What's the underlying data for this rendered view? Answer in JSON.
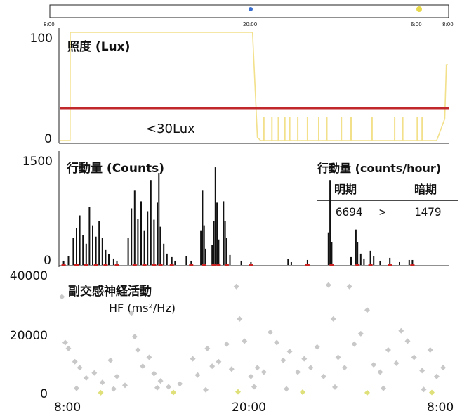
{
  "colors": {
    "light": "#f2e08a",
    "threshold": "#c0282c",
    "threshold_label": "#2e2a7a",
    "activity": "#111111",
    "dark_mark": "#cc2222",
    "hf": "#c8c8c8",
    "hf_low": "#dfe07a"
  },
  "chart_data": [
    {
      "type": "line",
      "panel": "light",
      "title": "照度 (Lux)",
      "y_tick_labels": [
        "100",
        "0"
      ],
      "ylim": [
        0,
        100
      ],
      "xlim": [
        0,
        24
      ],
      "threshold": {
        "value": 30,
        "label": "<30Lux"
      },
      "series": [
        {
          "x": [
            0,
            0.3,
            0.6,
            0.61,
            11.9,
            11.9,
            12.2,
            12.4,
            23.3,
            23.5,
            23.8,
            23.9,
            24
          ],
          "y": [
            0,
            0,
            0,
            100,
            100,
            100,
            3,
            0,
            0,
            8,
            20,
            70,
            70
          ]
        }
      ],
      "spikes_x": [
        12.6,
        13.1,
        13.5,
        13.9,
        14.2,
        14.7,
        15.3,
        16.0,
        16.5,
        17.4,
        18.0,
        19.3,
        20.7,
        21.2,
        22.1,
        22.4
      ]
    },
    {
      "type": "bar",
      "panel": "activity",
      "title": "行動量 (Counts)",
      "y_tick_labels": [
        "1500",
        "0"
      ],
      "ylim": [
        0,
        1500
      ],
      "xlim": [
        0,
        24
      ],
      "values": [
        {
          "x": 0.2,
          "y": 60
        },
        {
          "x": 0.5,
          "y": 120
        },
        {
          "x": 0.8,
          "y": 380
        },
        {
          "x": 1.0,
          "y": 520
        },
        {
          "x": 1.2,
          "y": 700
        },
        {
          "x": 1.4,
          "y": 420
        },
        {
          "x": 1.6,
          "y": 300
        },
        {
          "x": 1.8,
          "y": 820
        },
        {
          "x": 2.0,
          "y": 560
        },
        {
          "x": 2.2,
          "y": 400
        },
        {
          "x": 2.4,
          "y": 620
        },
        {
          "x": 2.6,
          "y": 380
        },
        {
          "x": 2.8,
          "y": 210
        },
        {
          "x": 3.0,
          "y": 150
        },
        {
          "x": 3.3,
          "y": 90
        },
        {
          "x": 3.5,
          "y": 60
        },
        {
          "x": 4.2,
          "y": 380
        },
        {
          "x": 4.4,
          "y": 800
        },
        {
          "x": 4.6,
          "y": 1050
        },
        {
          "x": 4.8,
          "y": 650
        },
        {
          "x": 5.0,
          "y": 900
        },
        {
          "x": 5.2,
          "y": 480
        },
        {
          "x": 5.4,
          "y": 760
        },
        {
          "x": 5.6,
          "y": 1200
        },
        {
          "x": 5.8,
          "y": 640
        },
        {
          "x": 6.0,
          "y": 880
        },
        {
          "x": 6.1,
          "y": 1300
        },
        {
          "x": 6.2,
          "y": 540
        },
        {
          "x": 6.4,
          "y": 300
        },
        {
          "x": 6.6,
          "y": 160
        },
        {
          "x": 6.9,
          "y": 110
        },
        {
          "x": 7.1,
          "y": 60
        },
        {
          "x": 7.8,
          "y": 120
        },
        {
          "x": 8.1,
          "y": 60
        },
        {
          "x": 8.7,
          "y": 480
        },
        {
          "x": 8.8,
          "y": 1050
        },
        {
          "x": 8.9,
          "y": 560
        },
        {
          "x": 9.0,
          "y": 230
        },
        {
          "x": 9.4,
          "y": 280
        },
        {
          "x": 9.5,
          "y": 620
        },
        {
          "x": 9.6,
          "y": 1380
        },
        {
          "x": 9.7,
          "y": 880
        },
        {
          "x": 9.8,
          "y": 360
        },
        {
          "x": 10.1,
          "y": 900
        },
        {
          "x": 10.2,
          "y": 620
        },
        {
          "x": 10.3,
          "y": 380
        },
        {
          "x": 10.5,
          "y": 140
        },
        {
          "x": 11.2,
          "y": 60
        },
        {
          "x": 11.8,
          "y": 40
        },
        {
          "x": 14.1,
          "y": 80
        },
        {
          "x": 14.3,
          "y": 40
        },
        {
          "x": 15.3,
          "y": 70
        },
        {
          "x": 16.6,
          "y": 460
        },
        {
          "x": 16.7,
          "y": 1200
        },
        {
          "x": 16.8,
          "y": 320
        },
        {
          "x": 18.0,
          "y": 110
        },
        {
          "x": 18.3,
          "y": 500
        },
        {
          "x": 18.4,
          "y": 320
        },
        {
          "x": 18.6,
          "y": 160
        },
        {
          "x": 18.8,
          "y": 90
        },
        {
          "x": 19.2,
          "y": 200
        },
        {
          "x": 19.4,
          "y": 120
        },
        {
          "x": 19.8,
          "y": 60
        },
        {
          "x": 20.4,
          "y": 100
        },
        {
          "x": 21.0,
          "y": 40
        },
        {
          "x": 21.6,
          "y": 70
        },
        {
          "x": 21.8,
          "y": 70
        }
      ],
      "inset": {
        "title": "行動量 (counts/hour)",
        "headers": [
          "明期",
          "暗期"
        ],
        "light_value": "6694",
        "comparator": ">",
        "dark_value": "1479"
      }
    },
    {
      "type": "scatter",
      "panel": "hf",
      "title": "副交感神経活動",
      "subtitle": "HF (ms²/Hz)",
      "y_tick_labels": [
        "40000",
        "20000",
        "0"
      ],
      "ylim": [
        0,
        40000
      ],
      "xlim": [
        0,
        24
      ],
      "x_tick_labels": [
        "8:00",
        "20:00",
        "8:00"
      ],
      "points": [
        {
          "x": 0.1,
          "y": 33000
        },
        {
          "x": 0.3,
          "y": 17500
        },
        {
          "x": 0.5,
          "y": 15500
        },
        {
          "x": 0.9,
          "y": 11000
        },
        {
          "x": 1.2,
          "y": 9000
        },
        {
          "x": 1.6,
          "y": 5500
        },
        {
          "x": 2.1,
          "y": 7200
        },
        {
          "x": 2.6,
          "y": 4000
        },
        {
          "x": 3.1,
          "y": 11500
        },
        {
          "x": 3.5,
          "y": 6000
        },
        {
          "x": 4.0,
          "y": 3000
        },
        {
          "x": 4.4,
          "y": 27500
        },
        {
          "x": 4.6,
          "y": 19500
        },
        {
          "x": 4.8,
          "y": 15000
        },
        {
          "x": 5.1,
          "y": 9500
        },
        {
          "x": 5.5,
          "y": 12500
        },
        {
          "x": 5.8,
          "y": 7000
        },
        {
          "x": 6.2,
          "y": 4500
        },
        {
          "x": 6.7,
          "y": 2500
        },
        {
          "x": 7.4,
          "y": 3500
        },
        {
          "x": 8.2,
          "y": 12000
        },
        {
          "x": 8.5,
          "y": 6500
        },
        {
          "x": 9.1,
          "y": 15500
        },
        {
          "x": 9.4,
          "y": 9500
        },
        {
          "x": 9.8,
          "y": 11000
        },
        {
          "x": 10.3,
          "y": 17000
        },
        {
          "x": 10.6,
          "y": 8500
        },
        {
          "x": 10.9,
          "y": 36500
        },
        {
          "x": 11.1,
          "y": 25500
        },
        {
          "x": 11.4,
          "y": 18000
        },
        {
          "x": 11.8,
          "y": 6000
        },
        {
          "x": 12.2,
          "y": 9000
        },
        {
          "x": 12.6,
          "y": 7500
        },
        {
          "x": 13.0,
          "y": 21000
        },
        {
          "x": 13.4,
          "y": 17500
        },
        {
          "x": 13.8,
          "y": 11500
        },
        {
          "x": 14.2,
          "y": 14500
        },
        {
          "x": 14.7,
          "y": 7500
        },
        {
          "x": 15.1,
          "y": 12000
        },
        {
          "x": 15.5,
          "y": 9000
        },
        {
          "x": 15.9,
          "y": 16000
        },
        {
          "x": 16.3,
          "y": 6000
        },
        {
          "x": 16.6,
          "y": 37000
        },
        {
          "x": 16.9,
          "y": 25500
        },
        {
          "x": 17.2,
          "y": 12500
        },
        {
          "x": 17.6,
          "y": 9000
        },
        {
          "x": 17.9,
          "y": 36500
        },
        {
          "x": 18.2,
          "y": 17000
        },
        {
          "x": 18.6,
          "y": 20500
        },
        {
          "x": 19.0,
          "y": 28500
        },
        {
          "x": 19.4,
          "y": 10000
        },
        {
          "x": 19.8,
          "y": 7500
        },
        {
          "x": 20.3,
          "y": 15000
        },
        {
          "x": 20.8,
          "y": 10500
        },
        {
          "x": 21.1,
          "y": 21500
        },
        {
          "x": 21.5,
          "y": 18000
        },
        {
          "x": 21.9,
          "y": 12500
        },
        {
          "x": 22.4,
          "y": 8000
        },
        {
          "x": 22.9,
          "y": 15000
        },
        {
          "x": 23.3,
          "y": 6000
        },
        {
          "x": 23.7,
          "y": 9000
        },
        {
          "x": 1.0,
          "y": 2000
        },
        {
          "x": 3.3,
          "y": 1800
        },
        {
          "x": 6.0,
          "y": 2200
        },
        {
          "x": 9.0,
          "y": 1500
        },
        {
          "x": 12.0,
          "y": 2500
        },
        {
          "x": 14.0,
          "y": 1800
        },
        {
          "x": 17.0,
          "y": 2400
        },
        {
          "x": 20.0,
          "y": 2000
        },
        {
          "x": 22.5,
          "y": 1600
        },
        {
          "x": 2.5,
          "y": 500
        },
        {
          "x": 7.0,
          "y": 600
        },
        {
          "x": 11.0,
          "y": 800
        },
        {
          "x": 15.0,
          "y": 700
        },
        {
          "x": 19.0,
          "y": 500
        },
        {
          "x": 23.0,
          "y": 600
        }
      ]
    }
  ],
  "overview": {
    "x_tick_labels": [
      "8:00",
      "20:00",
      "6:00",
      "8:00"
    ]
  }
}
